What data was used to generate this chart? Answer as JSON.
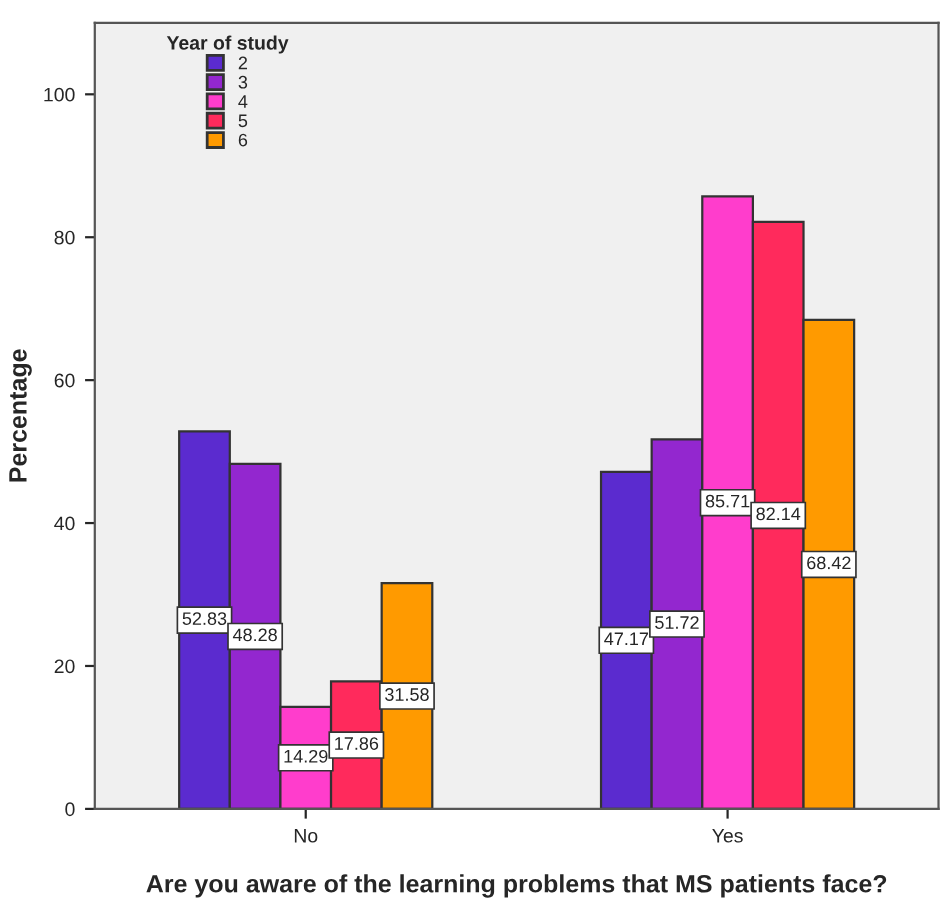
{
  "chart_data": {
    "type": "bar",
    "xlabel": "Are you aware of the learning problems that MS patients face?",
    "ylabel": "Percentage",
    "legend_title": "Year of study",
    "categories": [
      "No",
      "Yes"
    ],
    "series": [
      {
        "name": "2",
        "color": "#5b2bcf",
        "values": [
          52.83,
          47.17
        ]
      },
      {
        "name": "3",
        "color": "#9327cf",
        "values": [
          48.28,
          51.72
        ]
      },
      {
        "name": "4",
        "color": "#ff3dcc",
        "values": [
          14.29,
          85.71
        ]
      },
      {
        "name": "5",
        "color": "#ff2a5c",
        "values": [
          17.86,
          82.14
        ]
      },
      {
        "name": "6",
        "color": "#ff9a00",
        "values": [
          31.58,
          68.42
        ]
      }
    ],
    "ylim": [
      0,
      110
    ],
    "yticks": [
      0,
      20,
      40,
      60,
      80,
      100
    ],
    "data_labels": true,
    "legend": "top left",
    "grid": false
  }
}
